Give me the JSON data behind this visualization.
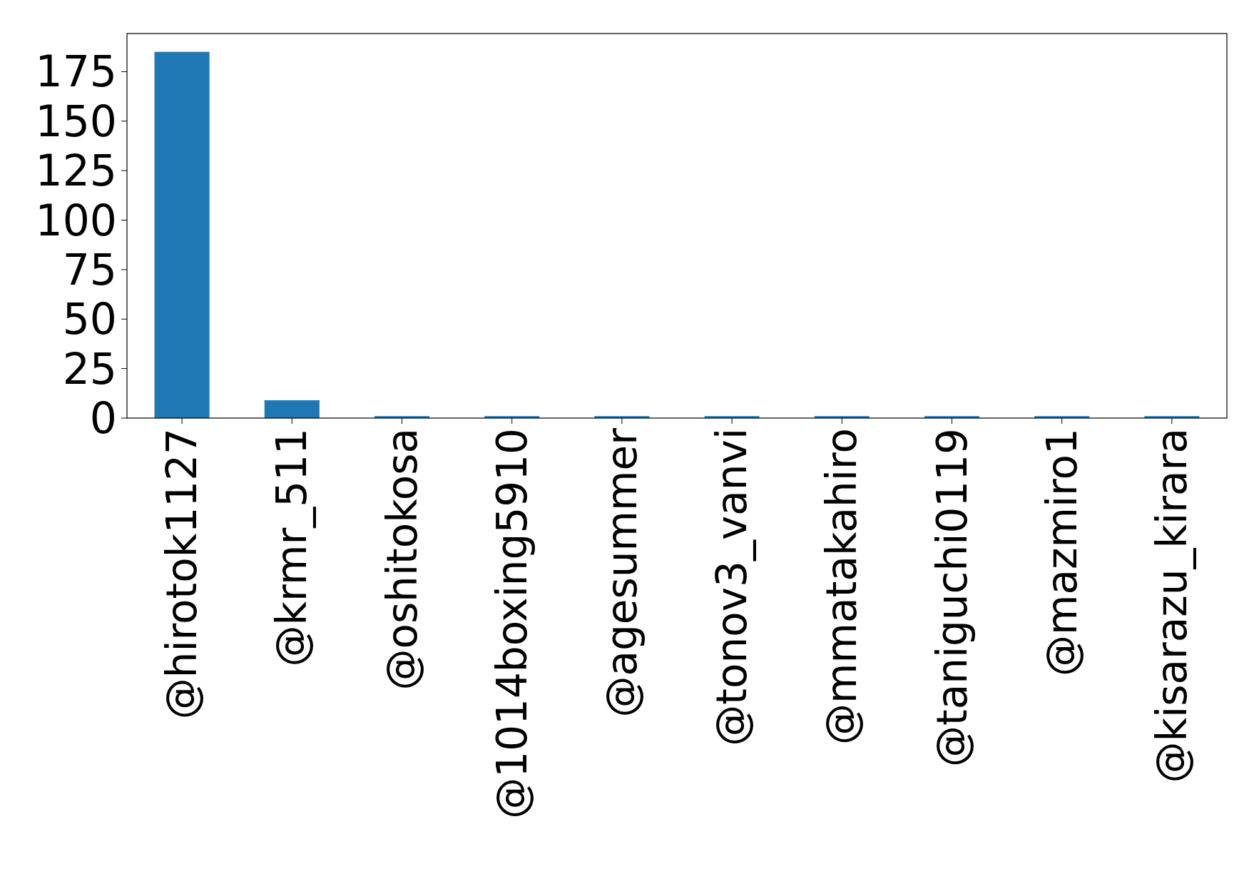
{
  "chart_data": {
    "type": "bar",
    "categories": [
      "@hirotok1127",
      "@krmr_511",
      "@oshitokosa",
      "@1014boxing5910",
      "@agesummer",
      "@tonov3_vanvi",
      "@mmatakahiro",
      "@taniguchi0119",
      "@mazmiro1",
      "@kisarazu_kirara"
    ],
    "values": [
      185,
      9,
      1,
      1,
      1,
      1,
      1,
      1,
      1,
      1
    ],
    "color": "#1f77b4",
    "ylim": [
      0,
      194.25
    ],
    "yticks": [
      0,
      25,
      50,
      75,
      100,
      125,
      150,
      175
    ],
    "grid": false
  }
}
